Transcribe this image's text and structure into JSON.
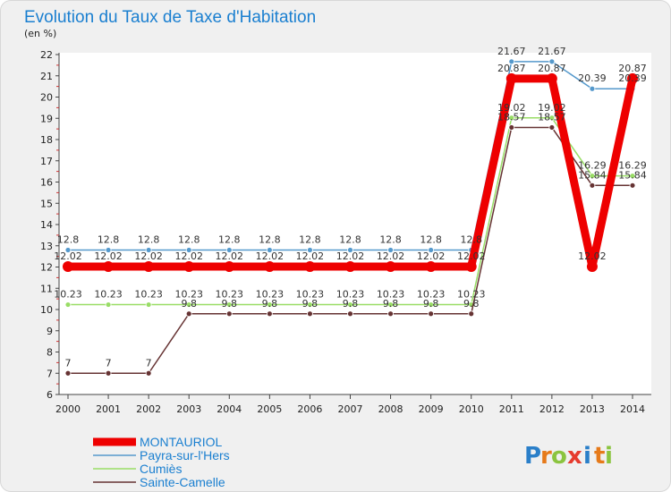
{
  "chart_data": {
    "type": "line",
    "title": "Evolution du Taux de Taxe d'Habitation",
    "ylabel": "(en %)",
    "xlabel": "",
    "ylim": [
      6,
      22
    ],
    "yticks": [
      "6",
      "7",
      "8",
      "9",
      "10",
      "11",
      "12",
      "13",
      "14",
      "15",
      "16",
      "17",
      "18",
      "19",
      "20",
      "21",
      "22"
    ],
    "categories": [
      "2000",
      "2001",
      "2002",
      "2003",
      "2004",
      "2005",
      "2006",
      "2007",
      "2008",
      "2009",
      "2010",
      "2011",
      "2012",
      "2013",
      "2014"
    ],
    "series": [
      {
        "name": "MONTAURIOL",
        "color": "#ee0000",
        "values": [
          12.02,
          12.02,
          12.02,
          12.02,
          12.02,
          12.02,
          12.02,
          12.02,
          12.02,
          12.02,
          12.02,
          20.87,
          20.87,
          12.02,
          20.87
        ],
        "labels": [
          "12.02",
          "12.02",
          "12.02",
          "12.02",
          "12.02",
          "12.02",
          "12.02",
          "12.02",
          "12.02",
          "12.02",
          "12.02",
          "20.87",
          "20.87",
          "12.02",
          "20.87"
        ]
      },
      {
        "name": "Payra-sur-l'Hers",
        "color": "#5599cc",
        "values": [
          12.8,
          12.8,
          12.8,
          12.8,
          12.8,
          12.8,
          12.8,
          12.8,
          12.8,
          12.8,
          12.8,
          21.67,
          21.67,
          20.39,
          20.39
        ],
        "labels": [
          "12.8",
          "12.8",
          "12.8",
          "12.8",
          "12.8",
          "12.8",
          "12.8",
          "12.8",
          "12.8",
          "12.8",
          "12.8",
          "21.67",
          "21.67",
          "20.39",
          "20.39"
        ]
      },
      {
        "name": "Cumiès",
        "color": "#99dd66",
        "values": [
          10.23,
          10.23,
          10.23,
          10.23,
          10.23,
          10.23,
          10.23,
          10.23,
          10.23,
          10.23,
          10.23,
          19.02,
          19.02,
          16.29,
          16.29
        ],
        "labels": [
          "10.23",
          "10.23",
          "10.23",
          "10.23",
          "10.23",
          "10.23",
          "10.23",
          "10.23",
          "10.23",
          "10.23",
          "10.23",
          "19.02",
          "19.02",
          "16.29",
          "16.29"
        ]
      },
      {
        "name": "Sainte-Camelle",
        "color": "#663333",
        "values": [
          7,
          7,
          7,
          9.8,
          9.8,
          9.8,
          9.8,
          9.8,
          9.8,
          9.8,
          9.8,
          18.57,
          18.57,
          15.84,
          15.84
        ],
        "labels": [
          "7",
          "7",
          "7",
          "9.8",
          "9.8",
          "9.8",
          "9.8",
          "9.8",
          "9.8",
          "9.8",
          "9.8",
          "18.57",
          "18.57",
          "15.84",
          "15.84"
        ]
      }
    ],
    "legend_position": "bottom-left",
    "grid": false
  },
  "brand": {
    "letters": [
      "P",
      "r",
      "o",
      "x",
      "i",
      "t",
      "i"
    ],
    "colors": [
      "#2a7fc9",
      "#e67a1a",
      "#8bc43f",
      "#e63b2e",
      "#2a7fc9",
      "#e67a1a",
      "#8bc43f"
    ]
  }
}
